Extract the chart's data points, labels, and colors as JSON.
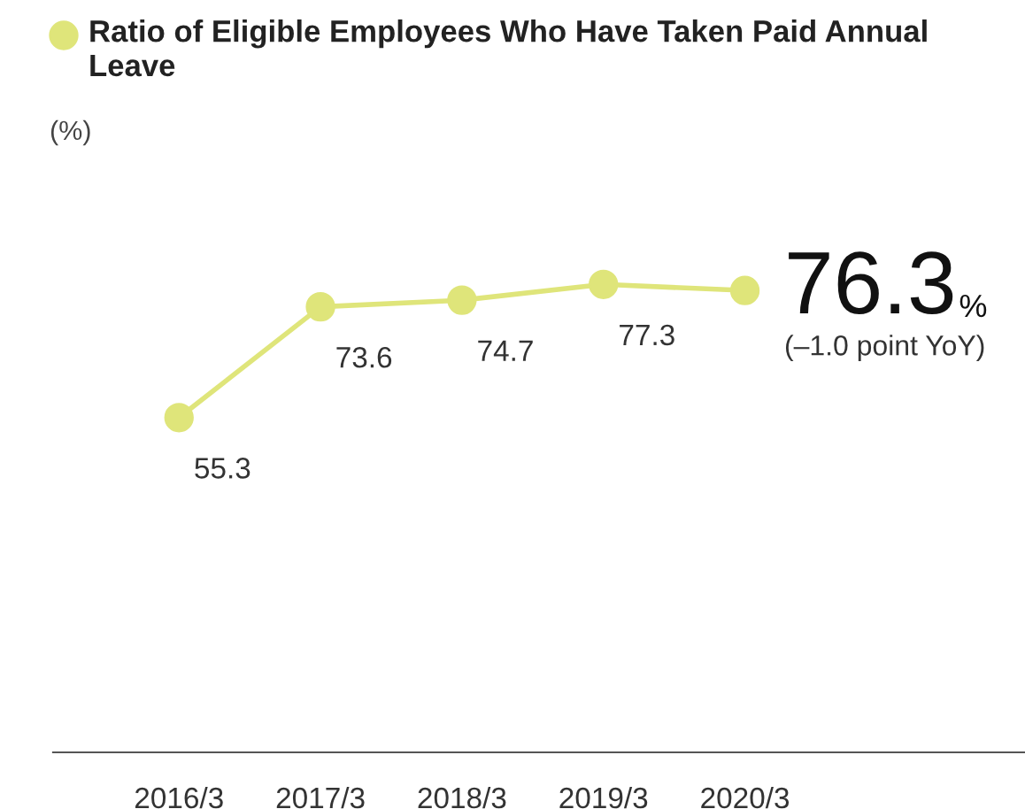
{
  "chart_data": {
    "type": "line",
    "title": "Ratio of Eligible Employees Who Have Taken Paid Annual Leave",
    "categories": [
      "2016/3",
      "2017/3",
      "2018/3",
      "2019/3",
      "2020/3"
    ],
    "series": [
      {
        "color": "#dfe57a",
        "values": [
          55.3,
          73.6,
          74.7,
          77.3,
          76.3
        ],
        "value_labels": [
          "55.3",
          "73.6",
          "74.7",
          "77.3",
          "76.3%"
        ]
      }
    ],
    "marker": "circle",
    "line_style": "solid",
    "grid": false,
    "annotations": [
      "(%)",
      {
        "text": "(–1.0 point YoY)",
        "x": "2020/3",
        "y": 76.3
      }
    ]
  }
}
